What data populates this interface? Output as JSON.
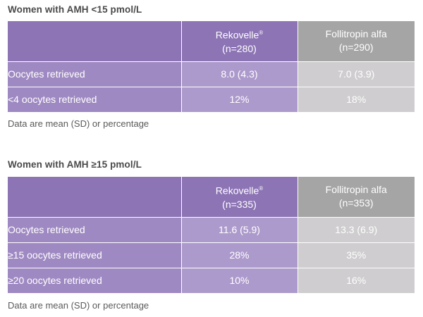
{
  "sections": [
    {
      "title": "Women with AMH <15 pmol/L",
      "columns": [
        {
          "name": "Rekovelle",
          "mark": "®",
          "n": "(n=280)"
        },
        {
          "name": "Follitropin alfa",
          "mark": "",
          "n": "(n=290)"
        }
      ],
      "rows": [
        {
          "label": "Oocytes retrieved",
          "rekovelle": "8.0 (4.3)",
          "follitropin": "7.0 (3.9)"
        },
        {
          "label": "<4 oocytes retrieved",
          "rekovelle": "12%",
          "follitropin": "18%"
        }
      ],
      "note": "Data are mean (SD) or percentage"
    },
    {
      "title": "Women with AMH ≥15 pmol/L",
      "columns": [
        {
          "name": "Rekovelle",
          "mark": "®",
          "n": "(n=335)"
        },
        {
          "name": "Follitropin alfa",
          "mark": "",
          "n": "(n=353)"
        }
      ],
      "rows": [
        {
          "label": "Oocytes retrieved",
          "rekovelle": "11.6 (5.9)",
          "follitropin": "13.3 (6.9)"
        },
        {
          "label": "≥15 oocytes retrieved",
          "rekovelle": "28%",
          "follitropin": "35%"
        },
        {
          "label": "≥20 oocytes retrieved",
          "rekovelle": "10%",
          "follitropin": "16%"
        }
      ],
      "note": "Data are mean (SD) or percentage"
    }
  ],
  "colors": {
    "rekovelle_header": "#8d74b5",
    "rekovelle_label": "#9f89c2",
    "rekovelle_value": "#ad9acc",
    "follitropin_header": "#a6a5a6",
    "follitropin_value": "#cfcdcf"
  }
}
